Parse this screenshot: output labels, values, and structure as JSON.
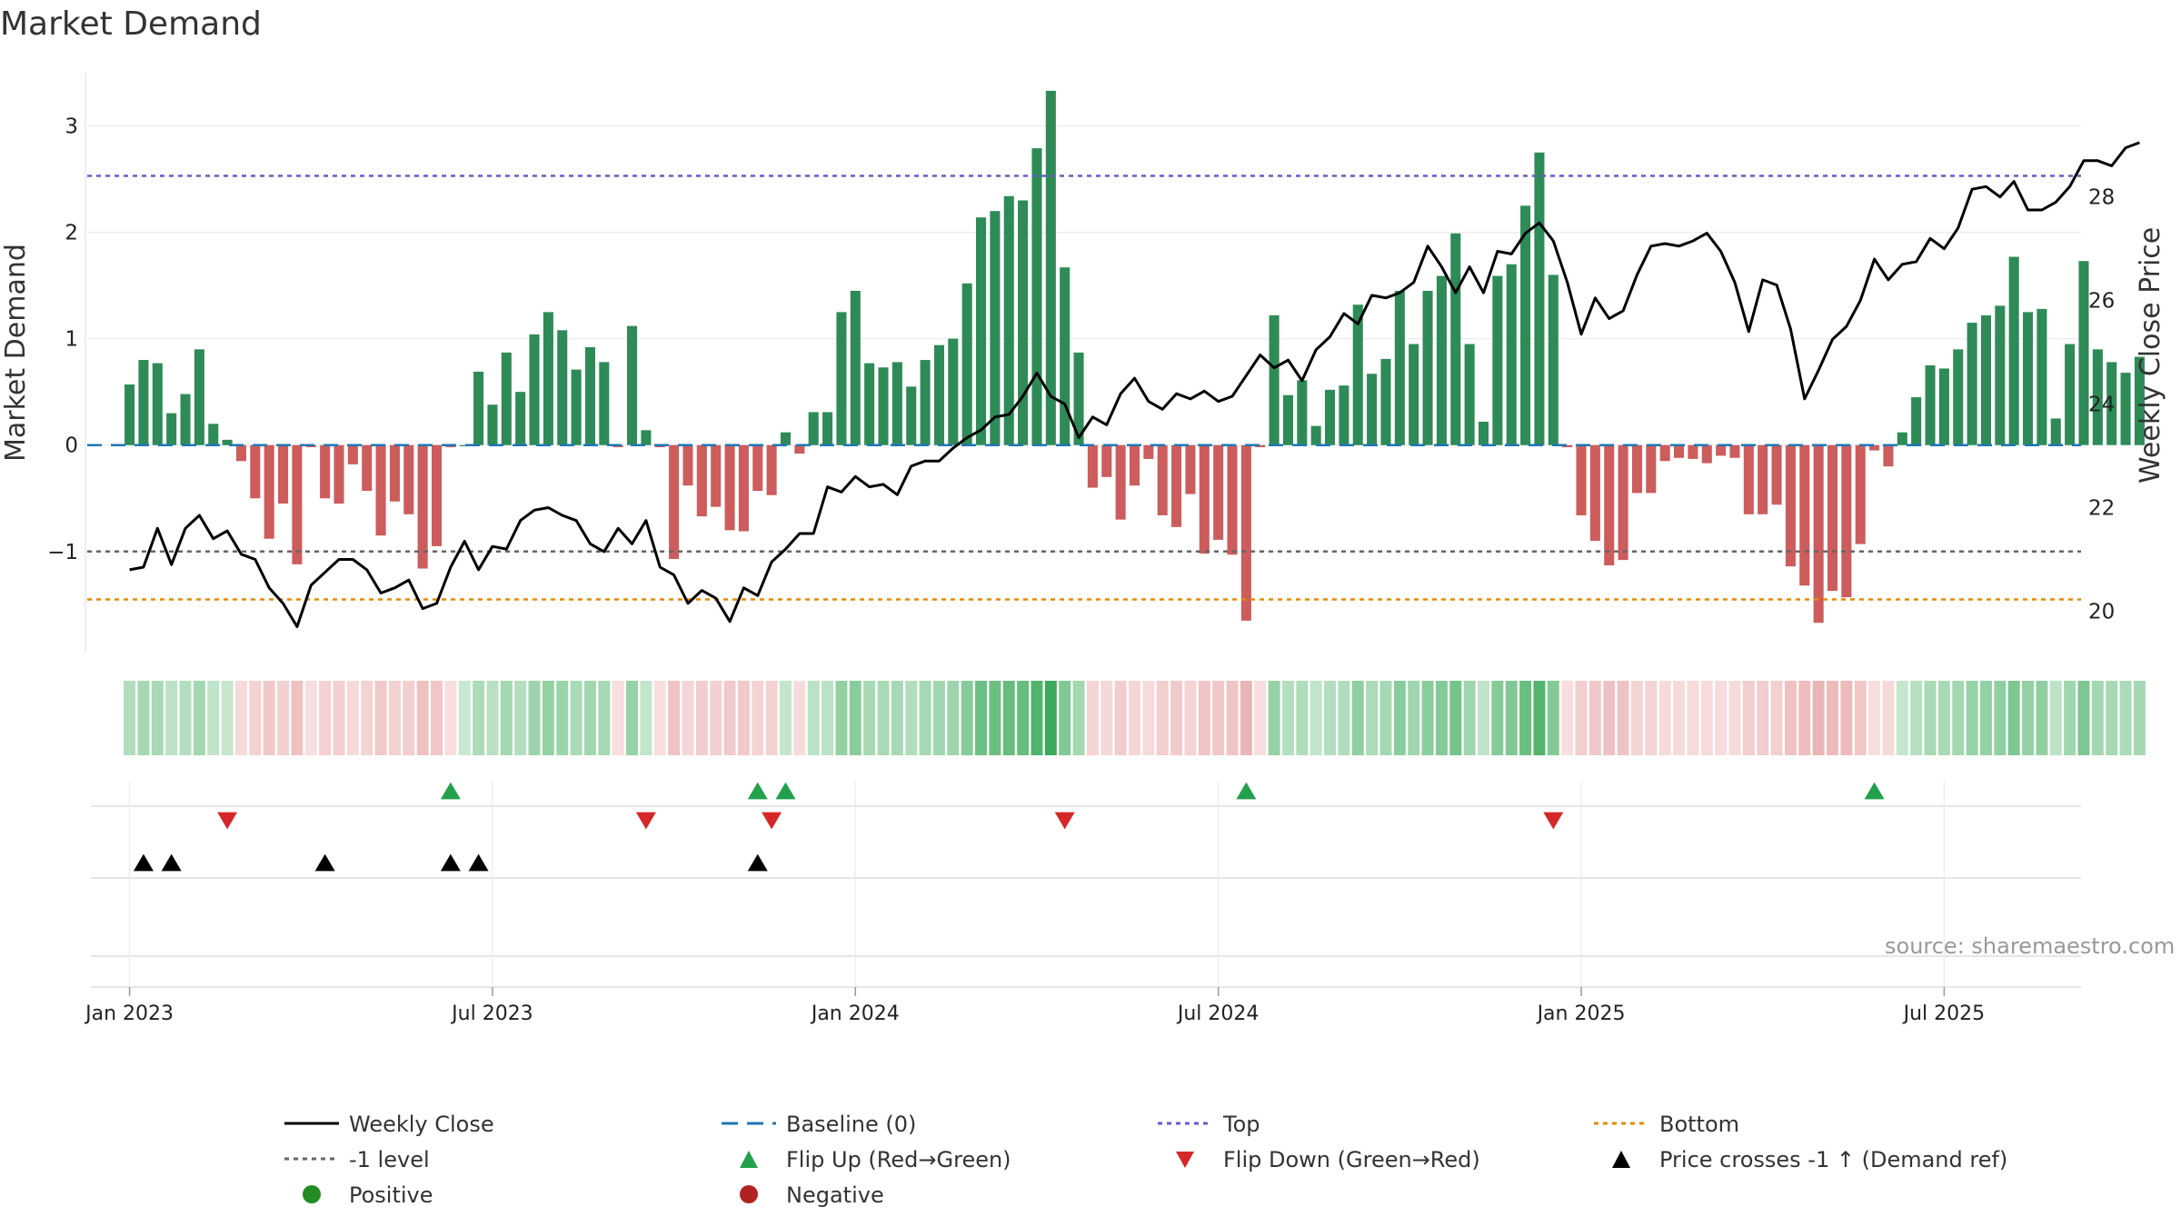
{
  "chart_data": {
    "type": "bar",
    "title": "Market Demand",
    "ylabel_left": "Market Demand",
    "ylabel_right": "Weekly Close Price",
    "source": "source: sharemaestro.com",
    "x_ticks": [
      {
        "week": 0,
        "label": "Jan 2023"
      },
      {
        "week": 26,
        "label": "Jul 2023"
      },
      {
        "week": 52,
        "label": "Jan 2024"
      },
      {
        "week": 78,
        "label": "Jul 2024"
      },
      {
        "week": 104,
        "label": "Jan 2025"
      },
      {
        "week": 130,
        "label": "Jul 2025"
      }
    ],
    "left_axis": {
      "ylim": [
        -1.95,
        3.5
      ],
      "ticks": [
        -1,
        0,
        1,
        2,
        3
      ],
      "tick_labels": [
        "−1",
        "0",
        "1",
        "2",
        "3"
      ]
    },
    "right_axis": {
      "ylim": [
        19.2,
        30.4
      ],
      "ticks": [
        20,
        22,
        24,
        26,
        28
      ],
      "tick_labels": [
        "20",
        "22",
        "24",
        "26",
        "28"
      ]
    },
    "reference_lines": {
      "baseline": 0,
      "top": 2.53,
      "bottom": -1.45,
      "minus_one": -1
    },
    "week_offset": -1.6,
    "demand": [
      0.57,
      0.8,
      0.77,
      0.3,
      0.48,
      0.9,
      0.2,
      0.05,
      -0.15,
      -0.5,
      -0.88,
      -0.55,
      -1.12,
      -0.02,
      -0.5,
      -0.55,
      -0.18,
      -0.43,
      -0.85,
      -0.53,
      -0.65,
      -1.16,
      -0.95,
      -0.02,
      0.0,
      0.69,
      0.38,
      0.87,
      0.5,
      1.04,
      1.25,
      1.08,
      0.71,
      0.92,
      0.78,
      -0.02,
      1.12,
      0.14,
      -0.02,
      -1.07,
      -0.38,
      -0.67,
      -0.58,
      -0.8,
      -0.81,
      -0.43,
      -0.47,
      0.12,
      -0.08,
      0.31,
      0.31,
      1.25,
      1.45,
      0.77,
      0.73,
      0.78,
      0.55,
      0.8,
      0.94,
      1.0,
      1.52,
      2.14,
      2.2,
      2.34,
      2.3,
      2.79,
      3.33,
      1.67,
      0.87,
      -0.4,
      -0.3,
      -0.7,
      -0.38,
      -0.13,
      -0.66,
      -0.77,
      -0.46,
      -1.02,
      -0.89,
      -1.03,
      -1.65,
      -0.02,
      1.22,
      0.47,
      0.61,
      0.18,
      0.52,
      0.56,
      1.32,
      0.67,
      0.81,
      1.45,
      0.95,
      1.45,
      1.59,
      1.99,
      0.95,
      0.22,
      1.59,
      1.7,
      2.25,
      2.75,
      1.6,
      -0.02,
      -0.66,
      -0.9,
      -1.13,
      -1.08,
      -0.45,
      -0.45,
      -0.15,
      -0.12,
      -0.13,
      -0.17,
      -0.1,
      -0.12,
      -0.65,
      -0.65,
      -0.56,
      -1.14,
      -1.32,
      -1.67,
      -1.37,
      -1.43,
      -0.93,
      -0.05,
      -0.2,
      0.12,
      0.45,
      0.75,
      0.72,
      0.9,
      1.15,
      1.22,
      1.31,
      1.77,
      1.25,
      1.28,
      0.25,
      0.95,
      1.73,
      0.9,
      0.78,
      0.68,
      0.83
    ],
    "close": [
      20.8,
      20.85,
      21.6,
      20.9,
      21.6,
      21.85,
      21.4,
      21.55,
      21.1,
      21.0,
      20.45,
      20.15,
      19.7,
      20.5,
      20.75,
      21.0,
      21.0,
      20.8,
      20.35,
      20.45,
      20.6,
      20.05,
      20.15,
      20.85,
      21.35,
      20.8,
      21.25,
      21.2,
      21.75,
      21.95,
      22.0,
      21.85,
      21.75,
      21.3,
      21.15,
      21.6,
      21.3,
      21.75,
      20.85,
      20.7,
      20.15,
      20.4,
      20.25,
      19.8,
      20.45,
      20.3,
      20.95,
      21.2,
      21.5,
      21.5,
      22.4,
      22.3,
      22.6,
      22.4,
      22.45,
      22.25,
      22.8,
      22.9,
      22.9,
      23.15,
      23.35,
      23.5,
      23.75,
      23.8,
      24.15,
      24.6,
      24.15,
      24.0,
      23.35,
      23.75,
      23.6,
      24.2,
      24.5,
      24.05,
      23.9,
      24.2,
      24.1,
      24.25,
      24.05,
      24.15,
      24.55,
      24.95,
      24.7,
      24.85,
      24.45,
      25.05,
      25.3,
      25.75,
      25.55,
      26.1,
      26.05,
      26.15,
      26.35,
      27.05,
      26.65,
      26.15,
      26.65,
      26.15,
      26.95,
      26.9,
      27.3,
      27.5,
      27.15,
      26.35,
      25.35,
      26.05,
      25.65,
      25.8,
      26.5,
      27.05,
      27.1,
      27.05,
      27.15,
      27.3,
      26.95,
      26.35,
      25.4,
      26.4,
      26.3,
      25.45,
      24.1,
      24.65,
      25.25,
      25.5,
      26.0,
      26.8,
      26.4,
      26.7,
      26.75,
      27.2,
      27.0,
      27.4,
      28.15,
      28.2,
      28.0,
      28.3,
      27.75,
      27.75,
      27.9,
      28.2,
      28.7,
      28.7,
      28.6,
      28.95,
      29.05
    ]
  },
  "signals": {
    "flip_up_weeks": [
      23,
      45,
      47,
      80,
      125
    ],
    "flip_down_weeks": [
      7,
      37,
      46,
      67,
      102
    ],
    "price_cross_weeks": [
      1,
      3,
      14,
      23,
      25,
      45
    ]
  },
  "colors": {
    "positive_bar": "#2e8b57",
    "negative_bar": "#cd5c5c",
    "close_line": "#000000",
    "baseline": "#1f77b4",
    "top": "#6a5acd",
    "bottom": "#e68a00",
    "minus_one": "#666666",
    "flip_up": "#22a04b",
    "flip_down": "#d62728",
    "price_cross": "#000000",
    "positive_dot": "#228b22",
    "negative_dot": "#b22222"
  },
  "legend": {
    "weekly_close": "Weekly Close",
    "baseline": "Baseline (0)",
    "top": "Top",
    "bottom": "Bottom",
    "minus_one": "-1 level",
    "flip_up": "Flip Up (Red→Green)",
    "flip_down": "Flip Down (Green→Red)",
    "price_cross": "Price crosses -1 ↑ (Demand ref)",
    "positive": "Positive",
    "negative": "Negative"
  }
}
